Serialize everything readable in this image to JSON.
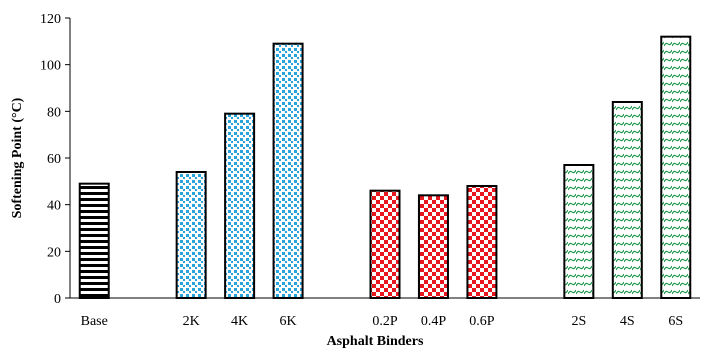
{
  "chart_data": {
    "type": "bar",
    "ylabel": "Softening Point (°C)",
    "xlabel": "Asphalt Binders",
    "ylim": [
      0,
      120
    ],
    "yticks": [
      0,
      20,
      40,
      60,
      80,
      100,
      120
    ],
    "categories": [
      "Base",
      "",
      "2K",
      "4K",
      "6K",
      "",
      "0.2P",
      "0.4P",
      "0.6P",
      "",
      "2S",
      "4S",
      "6S"
    ],
    "values": [
      49,
      null,
      54,
      79,
      109,
      null,
      46,
      44,
      48,
      null,
      57,
      84,
      112
    ],
    "patterns": [
      "horizontal-stripes",
      "",
      "blue-dots",
      "blue-dots",
      "blue-dots",
      "",
      "red-checker",
      "red-checker",
      "red-checker",
      "",
      "green-waves",
      "green-waves",
      "green-waves"
    ],
    "colors": {
      "blue": "#29a3dc",
      "red": "#e8161e",
      "green": "#1e9b4a",
      "axis": "#000000"
    }
  }
}
